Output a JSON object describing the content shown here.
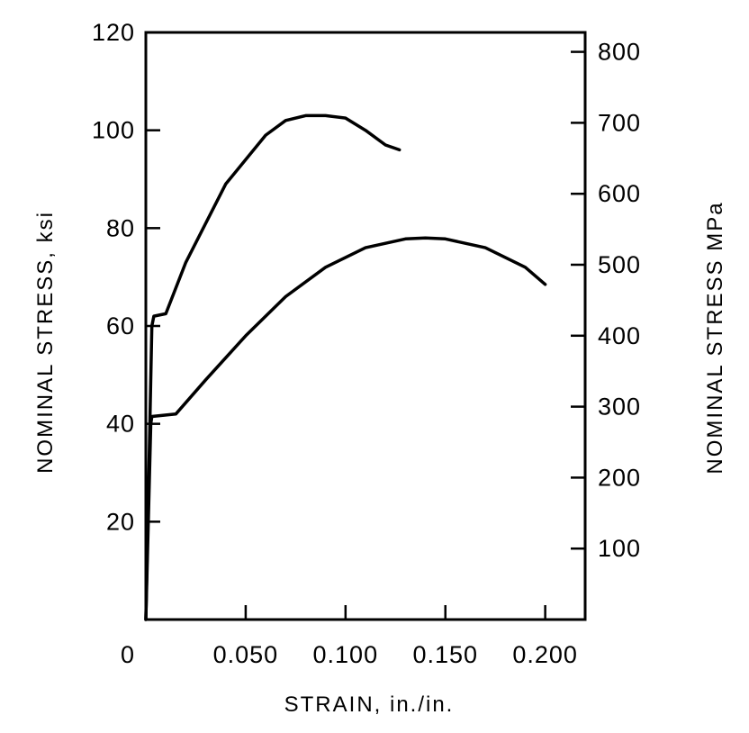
{
  "chart_data": {
    "type": "line",
    "title": "",
    "xlabel": "STRAIN, in./in.",
    "ylabel_left": "NOMINAL STRESS, ksi",
    "ylabel_right": "NOMINAL STRESS MPa",
    "xlim": [
      0,
      0.22
    ],
    "ylim_left": [
      0,
      120
    ],
    "ylim_right": [
      0,
      827.4
    ],
    "grid": false,
    "x_ticks": [
      {
        "value": 0,
        "label": "0"
      },
      {
        "value": 0.05,
        "label": "0.050"
      },
      {
        "value": 0.1,
        "label": "0.100"
      },
      {
        "value": 0.15,
        "label": "0.150"
      },
      {
        "value": 0.2,
        "label": "0.200"
      }
    ],
    "y_ticks_left": [
      {
        "value": 20,
        "label": "20"
      },
      {
        "value": 40,
        "label": "40"
      },
      {
        "value": 60,
        "label": "60"
      },
      {
        "value": 80,
        "label": "80"
      },
      {
        "value": 100,
        "label": "100"
      },
      {
        "value": 120,
        "label": "120"
      }
    ],
    "y_ticks_right": [
      {
        "value": 100,
        "label": "100"
      },
      {
        "value": 200,
        "label": "200"
      },
      {
        "value": 300,
        "label": "300"
      },
      {
        "value": 400,
        "label": "400"
      },
      {
        "value": 500,
        "label": "500"
      },
      {
        "value": 600,
        "label": "600"
      },
      {
        "value": 700,
        "label": "700"
      },
      {
        "value": 800,
        "label": "800"
      }
    ],
    "series": [
      {
        "x": [
          0,
          0.003,
          0.004,
          0.01,
          0.02,
          0.04,
          0.06,
          0.07,
          0.08,
          0.09,
          0.1,
          0.11,
          0.12,
          0.127
        ],
        "y": [
          0,
          60,
          62,
          62.5,
          73,
          89,
          99,
          102,
          103,
          103,
          102.5,
          100,
          97,
          96
        ]
      },
      {
        "x": [
          0,
          0.0025,
          0.003,
          0.015,
          0.03,
          0.05,
          0.07,
          0.09,
          0.11,
          0.13,
          0.14,
          0.15,
          0.17,
          0.19,
          0.2
        ],
        "y": [
          0,
          40,
          41.5,
          42,
          49,
          58,
          66,
          72,
          76,
          77.8,
          78,
          77.8,
          76,
          72,
          68.5
        ]
      }
    ]
  }
}
